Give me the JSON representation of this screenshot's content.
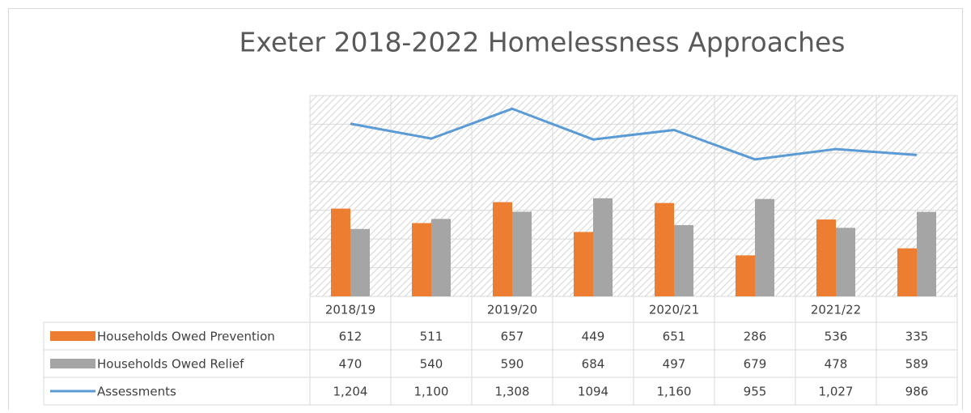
{
  "chart_data": {
    "type": "bar-line",
    "title": "Exeter 2018-2022 Homelessness Approaches",
    "categories": [
      "2018/19",
      null,
      "2019/20",
      null,
      "2020/21",
      null,
      "2021/22",
      null
    ],
    "series": [
      {
        "name": "Households Owed Prevention",
        "type": "bar",
        "color": "#ed7d31",
        "values": [
          612,
          511,
          657,
          449,
          651,
          286,
          536,
          335
        ]
      },
      {
        "name": "Households Owed Relief",
        "type": "bar",
        "color": "#a5a5a5",
        "values": [
          470,
          540,
          590,
          684,
          497,
          679,
          478,
          589
        ]
      },
      {
        "name": "Assessments",
        "type": "line",
        "color": "#5b9bd5",
        "values": [
          1204,
          1100,
          1308,
          1094,
          1160,
          955,
          1027,
          986
        ],
        "value_labels": [
          "1,204",
          "1,100",
          "1,308",
          "1094",
          "1,160",
          "955",
          "1,027",
          "986"
        ]
      }
    ],
    "ylim": [
      0,
      1400
    ],
    "yticks": [
      0,
      200,
      400,
      600,
      800,
      1000,
      1200,
      1400
    ],
    "grid": true
  }
}
